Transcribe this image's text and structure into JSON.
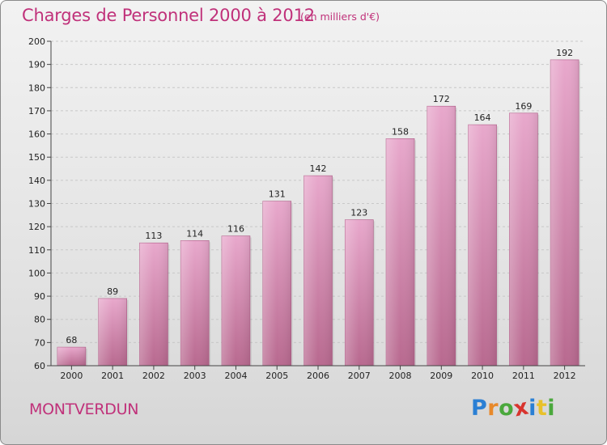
{
  "title": "Charges de Personnel 2000 à 2012",
  "subtitle": "(en milliers d'€)",
  "place": "MONTVERDUN",
  "logo": {
    "letters": [
      "P",
      "r",
      "o",
      "x",
      "i",
      "t",
      "i"
    ],
    "colors": [
      "#2a7fd4",
      "#e8892a",
      "#4aa83c",
      "#d8342e",
      "#2a7fd4",
      "#e8c12a",
      "#4aa83c"
    ]
  },
  "colors": {
    "title": "#c0317a",
    "bar_top": "#e8a8cc",
    "bar_bottom": "#b8698f"
  },
  "chart_data": {
    "type": "bar",
    "categories": [
      "2000",
      "2001",
      "2002",
      "2003",
      "2004",
      "2005",
      "2006",
      "2007",
      "2008",
      "2009",
      "2010",
      "2011",
      "2012"
    ],
    "values": [
      68,
      89,
      113,
      114,
      116,
      131,
      142,
      123,
      158,
      172,
      164,
      169,
      192
    ],
    "ylim": [
      60,
      200
    ],
    "yticks": [
      60,
      70,
      80,
      90,
      100,
      110,
      120,
      130,
      140,
      150,
      160,
      170,
      180,
      190,
      200
    ],
    "grid": true
  }
}
